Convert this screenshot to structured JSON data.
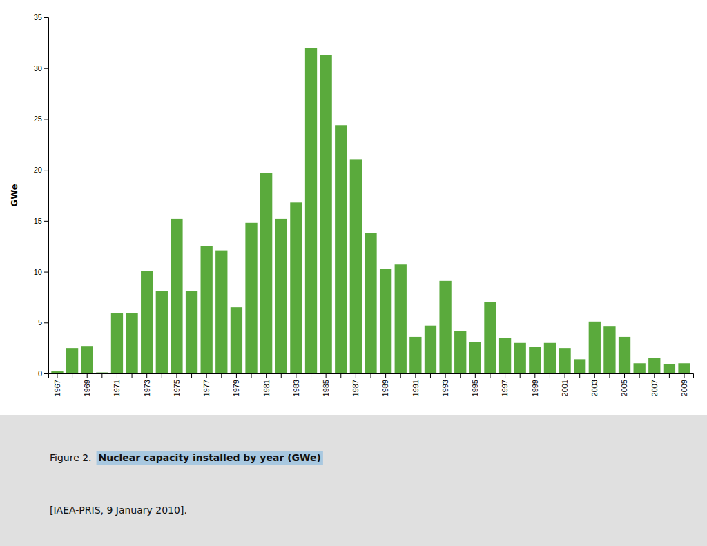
{
  "chart_data": {
    "type": "bar",
    "title": "Nuclear capacity installed by year (GWe)",
    "annotations": [
      "Figure 2.",
      "[IAEA-PRIS, 9 January 2010]."
    ],
    "ylabel": "GWe",
    "categories": [
      "1967",
      null,
      "1969",
      null,
      "1971",
      null,
      "1973",
      null,
      "1975",
      null,
      "1977",
      null,
      "1979",
      null,
      "1981",
      null,
      "1983",
      null,
      "1985",
      null,
      "1987",
      null,
      "1989",
      null,
      "1991",
      null,
      "1993",
      null,
      "1995",
      null,
      "1997",
      null,
      "1999",
      null,
      "2001",
      null,
      "2003",
      null,
      "2005",
      null,
      "2007",
      null,
      "2009"
    ],
    "values": [
      0.2,
      2.5,
      2.7,
      0.1,
      5.9,
      5.9,
      10.1,
      8.1,
      15.2,
      8.1,
      12.5,
      12.1,
      6.5,
      14.8,
      19.7,
      15.2,
      16.8,
      32.0,
      31.3,
      24.4,
      21.0,
      13.8,
      10.3,
      10.7,
      3.6,
      4.7,
      9.1,
      4.2,
      3.1,
      7.0,
      3.5,
      3.0,
      2.6,
      3.0,
      2.5,
      1.4,
      5.1,
      4.6,
      3.6,
      1.0,
      1.5,
      0.9,
      1.0
    ],
    "color": "#5aaa3c",
    "ylim": [
      0,
      35
    ],
    "yticks": [
      0,
      5,
      10,
      15,
      20,
      25,
      30,
      35
    ],
    "grid": false
  }
}
